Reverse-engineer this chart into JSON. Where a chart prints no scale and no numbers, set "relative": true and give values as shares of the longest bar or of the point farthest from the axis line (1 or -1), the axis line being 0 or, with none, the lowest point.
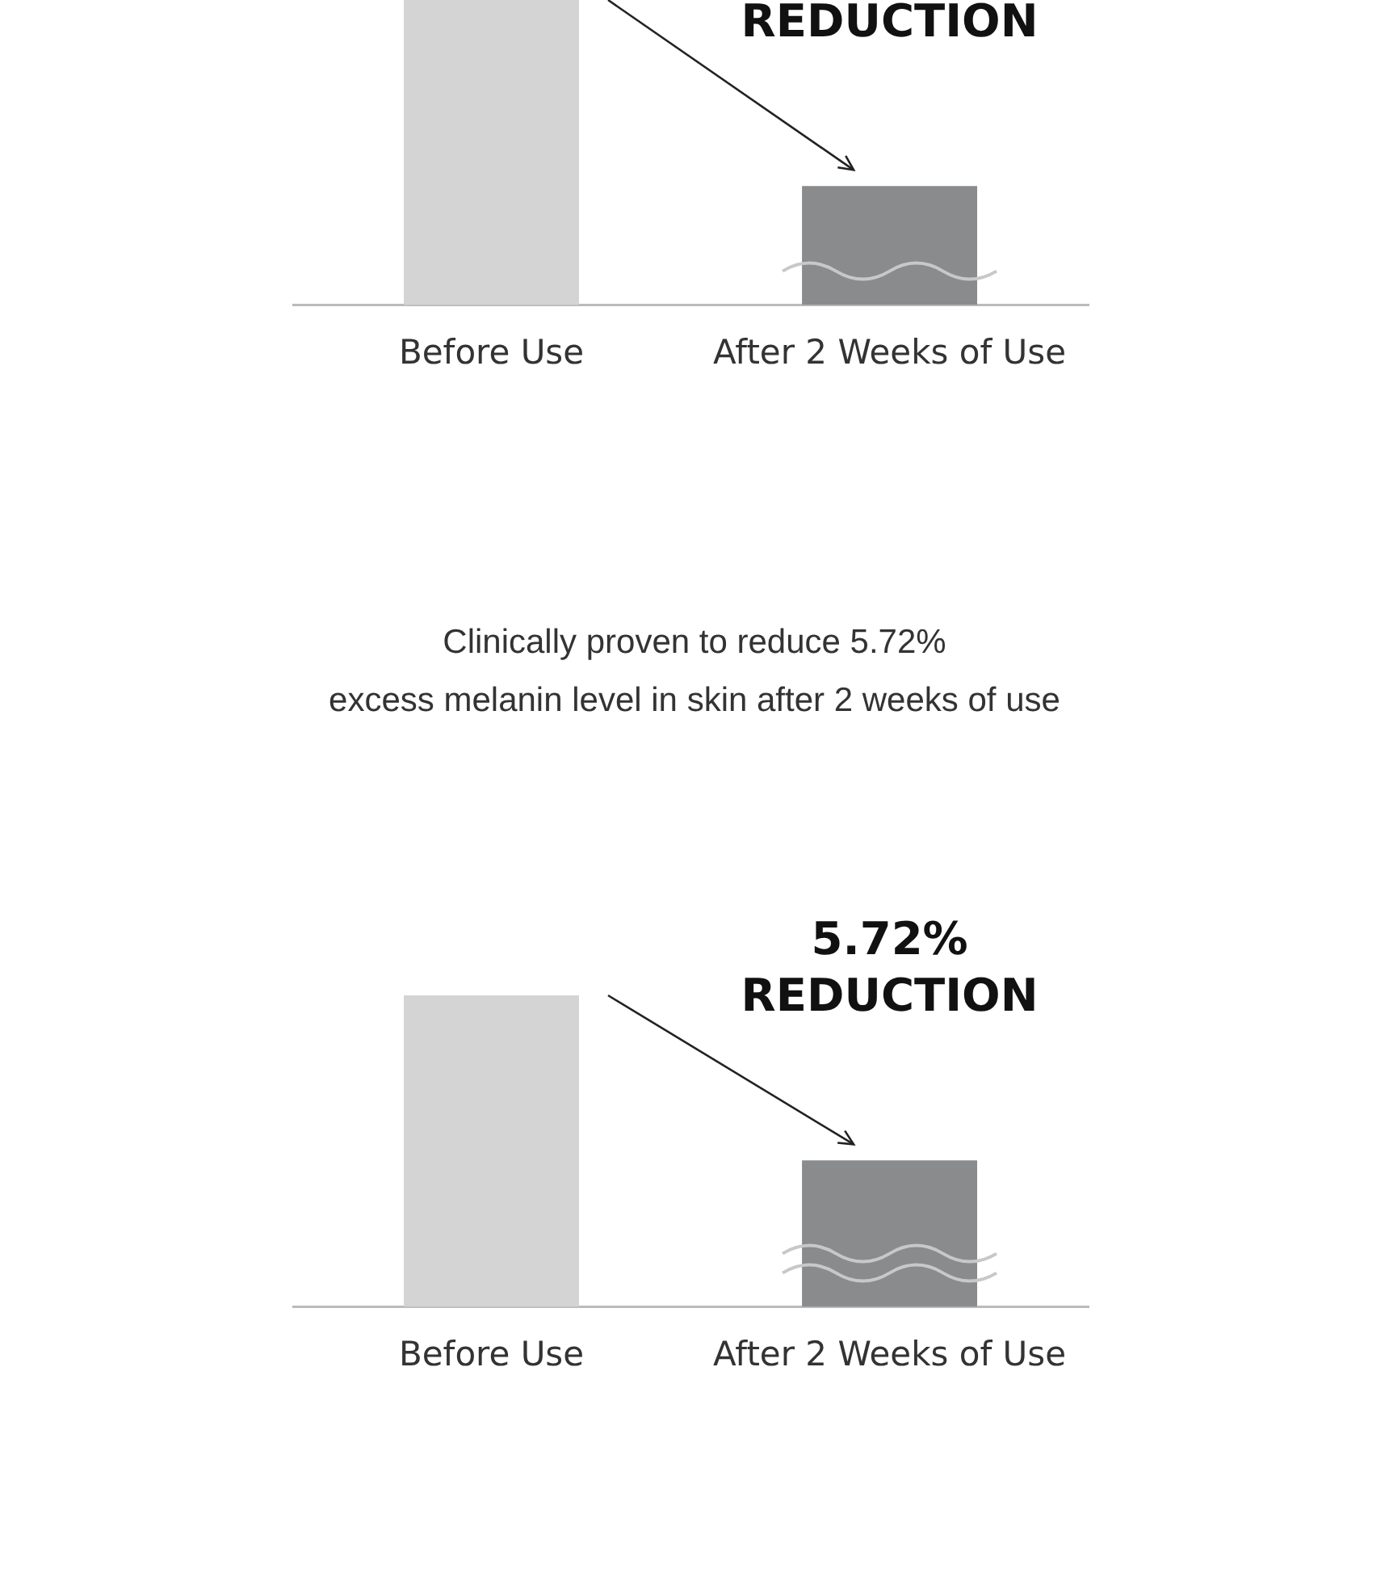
{
  "chart_data": [
    {
      "type": "bar",
      "categories": [
        "Before Use",
        "After 2 Weeks of Use"
      ],
      "values": [
        1,
        0.39
      ],
      "colors": [
        "#d4d4d4",
        "#898b8d"
      ],
      "relative": true,
      "tick_labels": "x",
      "annotations": [
        "REDUCTION"
      ]
    },
    {
      "type": "bar",
      "title": "Clinically proven to reduce 5.72%\nexcess melanin level in skin after 2 weeks of use",
      "categories": [
        "Before Use",
        "After 2 Weeks of Use"
      ],
      "values": [
        1,
        0.47
      ],
      "colors": [
        "#d4d4d4",
        "#898b8d"
      ],
      "relative": true,
      "tick_labels": "x",
      "annotations": [
        "5.72%",
        "REDUCTION"
      ]
    }
  ]
}
